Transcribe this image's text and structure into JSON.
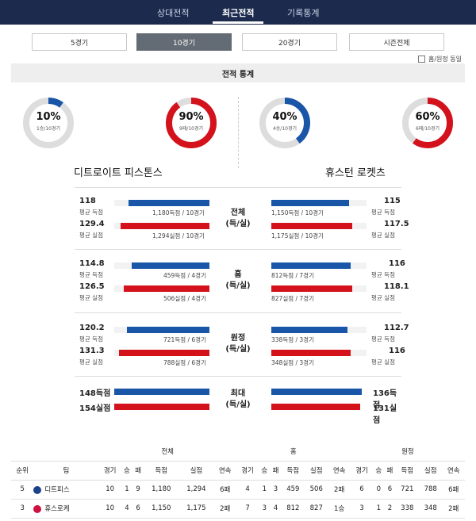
{
  "nav": {
    "tabs": [
      "상대전적",
      "최근전적",
      "기록통계"
    ],
    "active": 1
  },
  "periods": {
    "items": [
      "5경기",
      "10경기",
      "20경기",
      "시즌전체"
    ],
    "active": 1
  },
  "homeaway_label": "홈/원정 동일",
  "section_title": "전적 통계",
  "teams": {
    "home": {
      "name": "디트로이트 피스톤스",
      "win_pct": "10%",
      "win_sub": "1승/10경기",
      "win_frac": 0.1,
      "loss_pct": "90%",
      "loss_sub": "9패/10경기",
      "loss_frac": 0.9
    },
    "away": {
      "name": "휴스턴 로켓츠",
      "win_pct": "40%",
      "win_sub": "4승/10경기",
      "win_frac": 0.4,
      "loss_pct": "60%",
      "loss_sub": "6패/10경기",
      "loss_frac": 0.6
    }
  },
  "stats": [
    {
      "category_line1": "전체",
      "category_line2": "(득/실)",
      "left": [
        {
          "value": "118",
          "label": "평균 득점",
          "detail": "1,180득점 / 10경기"
        },
        {
          "value": "129.4",
          "label": "평균 실점",
          "detail": "1,294실점 / 10경기"
        }
      ],
      "right": [
        {
          "value": "115",
          "label": "평균 득점",
          "detail": "1,150득점 / 10경기"
        },
        {
          "value": "117.5",
          "label": "평균 실점",
          "detail": "1,175실점 / 10경기"
        }
      ]
    },
    {
      "category_line1": "홈",
      "category_line2": "(득/실)",
      "left": [
        {
          "value": "114.8",
          "label": "평균 득점",
          "detail": "459득점 / 4경기"
        },
        {
          "value": "126.5",
          "label": "평균 실점",
          "detail": "506실점 / 4경기"
        }
      ],
      "right": [
        {
          "value": "116",
          "label": "평균 득점",
          "detail": "812득점 / 7경기"
        },
        {
          "value": "118.1",
          "label": "평균 실점",
          "detail": "827실점 / 7경기"
        }
      ]
    },
    {
      "category_line1": "원정",
      "category_line2": "(득/실)",
      "left": [
        {
          "value": "120.2",
          "label": "평균 득점",
          "detail": "721득점 / 6경기"
        },
        {
          "value": "131.3",
          "label": "평균 실점",
          "detail": "788실점 / 6경기"
        }
      ],
      "right": [
        {
          "value": "112.7",
          "label": "평균 득점",
          "detail": "338득점 / 3경기"
        },
        {
          "value": "116",
          "label": "평균 실점",
          "detail": "348실점 / 3경기"
        }
      ]
    }
  ],
  "max": {
    "category_line1": "최대",
    "category_line2": "(득/실)",
    "left": {
      "score": "148득점",
      "allowed": "154실점"
    },
    "right": {
      "score": "136득점",
      "allowed": "131실점"
    }
  },
  "standings": {
    "group_headers": [
      "전체",
      "홈",
      "원정"
    ],
    "columns": [
      "순위",
      "팀",
      "경기",
      "승",
      "패",
      "득점",
      "실점",
      "연속",
      "경기",
      "승",
      "패",
      "득점",
      "실점",
      "연속",
      "경기",
      "승",
      "패",
      "득점",
      "실점",
      "연속"
    ],
    "rows": [
      [
        "5",
        "디트피스",
        "10",
        "1",
        "9",
        "1,180",
        "1,294",
        "6패",
        "4",
        "1",
        "3",
        "459",
        "506",
        "2패",
        "6",
        "0",
        "6",
        "721",
        "788",
        "6패"
      ],
      [
        "3",
        "휴스로케",
        "10",
        "4",
        "6",
        "1,150",
        "1,175",
        "2패",
        "7",
        "3",
        "4",
        "812",
        "827",
        "1승",
        "3",
        "1",
        "2",
        "338",
        "348",
        "2패"
      ]
    ]
  },
  "colors": {
    "nav_bg": "#1c2a4e",
    "blue": "#1a56a8",
    "red": "#d3121c",
    "grey_ring": "#dddddd"
  }
}
